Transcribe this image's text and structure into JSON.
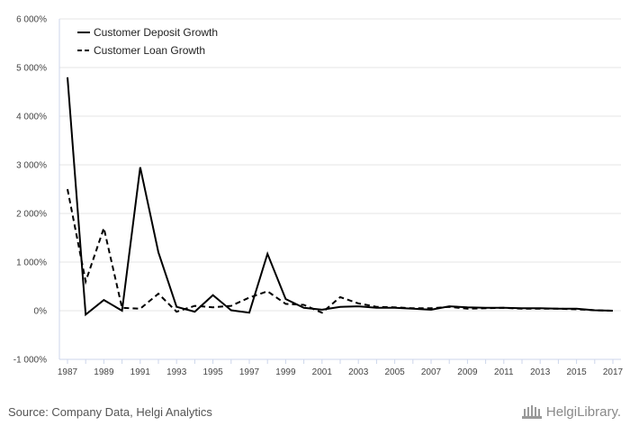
{
  "chart_data": {
    "type": "line",
    "x": [
      1987,
      1988,
      1989,
      1990,
      1991,
      1992,
      1993,
      1994,
      1995,
      1996,
      1997,
      1998,
      1999,
      2000,
      2001,
      2002,
      2003,
      2004,
      2005,
      2006,
      2007,
      2008,
      2009,
      2010,
      2011,
      2012,
      2013,
      2014,
      2015,
      2016,
      2017
    ],
    "series": [
      {
        "name": "Customer Deposit Growth",
        "style": "solid",
        "values": [
          4800,
          -80,
          220,
          0,
          2950,
          1200,
          80,
          -20,
          320,
          10,
          -40,
          1170,
          240,
          60,
          20,
          80,
          90,
          60,
          60,
          40,
          20,
          90,
          70,
          60,
          60,
          50,
          50,
          40,
          40,
          10,
          0
        ]
      },
      {
        "name": "Customer Loan Growth",
        "style": "dashed",
        "values": [
          2500,
          600,
          1700,
          60,
          40,
          350,
          -20,
          100,
          70,
          100,
          270,
          400,
          140,
          120,
          -40,
          280,
          150,
          80,
          70,
          50,
          50,
          80,
          40,
          50,
          60,
          40,
          40,
          40,
          30,
          10,
          0
        ]
      }
    ],
    "y_ticks": [
      "6 000%",
      "5 000%",
      "4 000%",
      "3 000%",
      "2 000%",
      "1 000%",
      "0%",
      "-1 000%"
    ],
    "y_tick_values": [
      6000,
      5000,
      4000,
      3000,
      2000,
      1000,
      0,
      -1000
    ],
    "x_ticks": [
      "1987",
      "1989",
      "1991",
      "1993",
      "1995",
      "1997",
      "1999",
      "2001",
      "2003",
      "2005",
      "2007",
      "2009",
      "2011",
      "2013",
      "2015",
      "2017"
    ],
    "ylim": [
      -1000,
      6000
    ],
    "grid": true,
    "legend_position": "top-left",
    "colors": {
      "line": "#000000",
      "grid": "#e6e6e6",
      "axis": "#ccd6eb"
    }
  },
  "footer": {
    "source": "Source: Company Data, Helgi Analytics",
    "logo_text": "HelgiLibrary."
  }
}
